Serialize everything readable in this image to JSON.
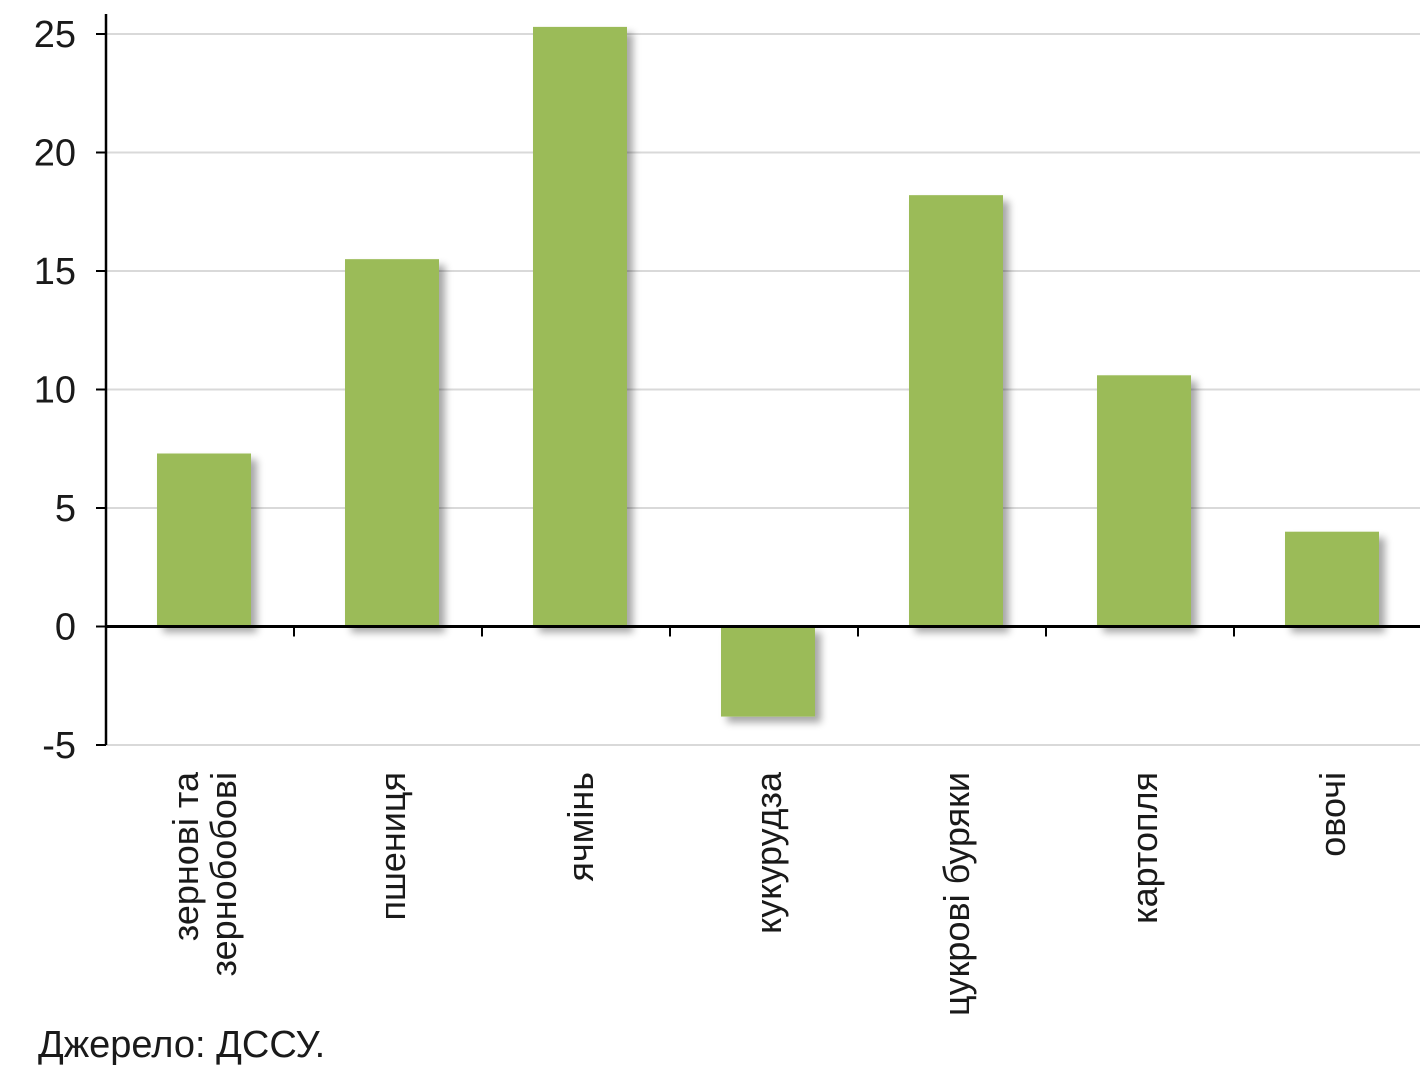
{
  "chart_data": {
    "type": "bar",
    "categories": [
      [
        "зернові та",
        "зернобобові"
      ],
      [
        "пшениця"
      ],
      [
        "ячмінь"
      ],
      [
        "кукурудза"
      ],
      [
        "цукрові буряки"
      ],
      [
        "картопля"
      ],
      [
        "овочі"
      ]
    ],
    "values": [
      7.3,
      15.5,
      25.3,
      -3.8,
      18.2,
      10.6,
      4.0
    ],
    "ylim": [
      -5,
      25
    ],
    "yticks": [
      25,
      20,
      15,
      10,
      5,
      0,
      -5
    ],
    "grid": true,
    "colors": {
      "bar": "#9bbb59",
      "bar_shadow": "#b8b8b8",
      "grid": "#d9d9d9",
      "axis": "#000000"
    }
  },
  "source": "Джерело: ДССУ."
}
